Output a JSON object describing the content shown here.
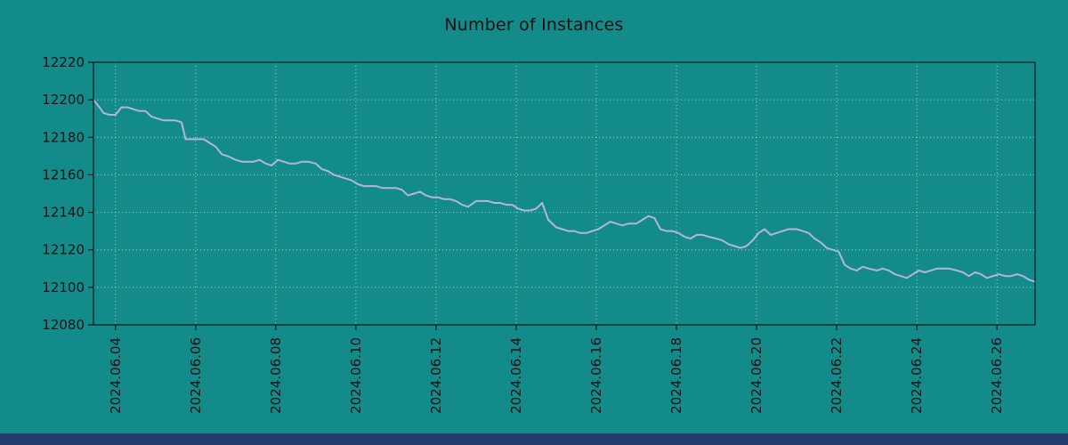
{
  "colors": {
    "background": "#148b8b",
    "line": "#b3b3e6",
    "footer_bar": "#253a6e",
    "text": "#111111"
  },
  "chart_data": {
    "type": "line",
    "title": "Number of Instances",
    "xlabel": "",
    "ylabel": "",
    "grid": true,
    "legend": "none",
    "xlim": [
      3.45,
      26.95
    ],
    "ylim": [
      12080,
      12220
    ],
    "x_tick_values": [
      4,
      6,
      8,
      10,
      12,
      14,
      16,
      18,
      20,
      22,
      24,
      26
    ],
    "x_tick_labels": [
      "2024.06.04",
      "2024.06.06",
      "2024.06.08",
      "2024.06.10",
      "2024.06.12",
      "2024.06.14",
      "2024.06.16",
      "2024.06.18",
      "2024.06.20",
      "2024.06.22",
      "2024.06.24",
      "2024.06.26"
    ],
    "y_tick_values": [
      12080,
      12100,
      12120,
      12140,
      12160,
      12180,
      12200,
      12220
    ],
    "y_tick_labels": [
      "12080",
      "12100",
      "12120",
      "12140",
      "12160",
      "12180",
      "12200",
      "12220"
    ],
    "series_name": "Number of Instances",
    "points": [
      [
        3.45,
        12200
      ],
      [
        3.6,
        12196
      ],
      [
        3.7,
        12193
      ],
      [
        3.85,
        12192
      ],
      [
        4.0,
        12192
      ],
      [
        4.15,
        12196
      ],
      [
        4.3,
        12196
      ],
      [
        4.45,
        12195
      ],
      [
        4.6,
        12194
      ],
      [
        4.75,
        12194
      ],
      [
        4.9,
        12191
      ],
      [
        5.05,
        12190
      ],
      [
        5.2,
        12189
      ],
      [
        5.35,
        12189
      ],
      [
        5.5,
        12189
      ],
      [
        5.65,
        12188
      ],
      [
        5.75,
        12179
      ],
      [
        6.0,
        12179
      ],
      [
        6.2,
        12179
      ],
      [
        6.35,
        12177
      ],
      [
        6.5,
        12175
      ],
      [
        6.65,
        12171
      ],
      [
        6.8,
        12170
      ],
      [
        7.0,
        12168
      ],
      [
        7.15,
        12167
      ],
      [
        7.3,
        12167
      ],
      [
        7.45,
        12167
      ],
      [
        7.6,
        12168
      ],
      [
        7.75,
        12166
      ],
      [
        7.9,
        12165
      ],
      [
        8.05,
        12168
      ],
      [
        8.2,
        12167
      ],
      [
        8.35,
        12166
      ],
      [
        8.5,
        12166
      ],
      [
        8.65,
        12167
      ],
      [
        8.8,
        12167
      ],
      [
        9.0,
        12166
      ],
      [
        9.15,
        12163
      ],
      [
        9.3,
        12162
      ],
      [
        9.45,
        12160
      ],
      [
        9.6,
        12159
      ],
      [
        9.75,
        12158
      ],
      [
        9.9,
        12157
      ],
      [
        10.05,
        12155
      ],
      [
        10.2,
        12154
      ],
      [
        10.35,
        12154
      ],
      [
        10.5,
        12154
      ],
      [
        10.65,
        12153
      ],
      [
        10.8,
        12153
      ],
      [
        11.0,
        12153
      ],
      [
        11.15,
        12152
      ],
      [
        11.3,
        12149
      ],
      [
        11.45,
        12150
      ],
      [
        11.6,
        12151
      ],
      [
        11.75,
        12149
      ],
      [
        11.9,
        12148
      ],
      [
        12.05,
        12148
      ],
      [
        12.2,
        12147
      ],
      [
        12.35,
        12147
      ],
      [
        12.5,
        12146
      ],
      [
        12.65,
        12144
      ],
      [
        12.8,
        12143
      ],
      [
        13.0,
        12146
      ],
      [
        13.15,
        12146
      ],
      [
        13.3,
        12146
      ],
      [
        13.45,
        12145
      ],
      [
        13.6,
        12145
      ],
      [
        13.75,
        12144
      ],
      [
        13.9,
        12144
      ],
      [
        14.05,
        12142
      ],
      [
        14.2,
        12141
      ],
      [
        14.35,
        12141
      ],
      [
        14.5,
        12142
      ],
      [
        14.65,
        12145
      ],
      [
        14.8,
        12136
      ],
      [
        15.0,
        12132
      ],
      [
        15.15,
        12131
      ],
      [
        15.3,
        12130
      ],
      [
        15.45,
        12130
      ],
      [
        15.6,
        12129
      ],
      [
        15.75,
        12129
      ],
      [
        15.9,
        12130
      ],
      [
        16.05,
        12131
      ],
      [
        16.2,
        12133
      ],
      [
        16.35,
        12135
      ],
      [
        16.5,
        12134
      ],
      [
        16.65,
        12133
      ],
      [
        16.8,
        12134
      ],
      [
        17.0,
        12134
      ],
      [
        17.15,
        12136
      ],
      [
        17.3,
        12138
      ],
      [
        17.45,
        12137
      ],
      [
        17.6,
        12131
      ],
      [
        17.75,
        12130
      ],
      [
        17.9,
        12130
      ],
      [
        18.05,
        12129
      ],
      [
        18.2,
        12127
      ],
      [
        18.35,
        12126
      ],
      [
        18.5,
        12128
      ],
      [
        18.65,
        12128
      ],
      [
        18.8,
        12127
      ],
      [
        19.0,
        12126
      ],
      [
        19.15,
        12125
      ],
      [
        19.3,
        12123
      ],
      [
        19.45,
        12122
      ],
      [
        19.6,
        12121
      ],
      [
        19.75,
        12122
      ],
      [
        19.9,
        12125
      ],
      [
        20.05,
        12129
      ],
      [
        20.2,
        12131
      ],
      [
        20.35,
        12128
      ],
      [
        20.5,
        12129
      ],
      [
        20.65,
        12130
      ],
      [
        20.8,
        12131
      ],
      [
        21.0,
        12131
      ],
      [
        21.15,
        12130
      ],
      [
        21.3,
        12129
      ],
      [
        21.45,
        12126
      ],
      [
        21.6,
        12124
      ],
      [
        21.75,
        12121
      ],
      [
        21.9,
        12120
      ],
      [
        22.05,
        12119
      ],
      [
        22.2,
        12112
      ],
      [
        22.35,
        12110
      ],
      [
        22.5,
        12109
      ],
      [
        22.65,
        12111
      ],
      [
        22.8,
        12110
      ],
      [
        23.0,
        12109
      ],
      [
        23.15,
        12110
      ],
      [
        23.3,
        12109
      ],
      [
        23.45,
        12107
      ],
      [
        23.6,
        12106
      ],
      [
        23.75,
        12105
      ],
      [
        23.9,
        12107
      ],
      [
        24.05,
        12109
      ],
      [
        24.2,
        12108
      ],
      [
        24.35,
        12109
      ],
      [
        24.5,
        12110
      ],
      [
        24.65,
        12110
      ],
      [
        24.8,
        12110
      ],
      [
        25.0,
        12109
      ],
      [
        25.15,
        12108
      ],
      [
        25.3,
        12106
      ],
      [
        25.45,
        12108
      ],
      [
        25.6,
        12107
      ],
      [
        25.75,
        12105
      ],
      [
        25.9,
        12106
      ],
      [
        26.05,
        12107
      ],
      [
        26.2,
        12106
      ],
      [
        26.35,
        12106
      ],
      [
        26.5,
        12107
      ],
      [
        26.65,
        12106
      ],
      [
        26.8,
        12104
      ],
      [
        26.95,
        12103
      ]
    ]
  }
}
